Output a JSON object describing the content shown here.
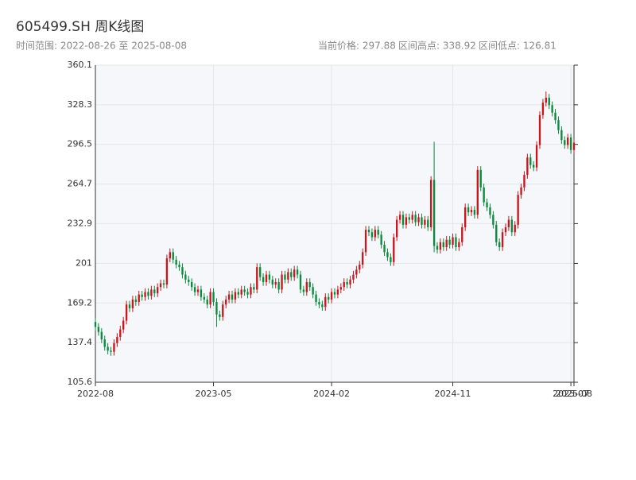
{
  "chart_data": {
    "type": "candlestick",
    "title": "605499.SH 周K线图",
    "subtitle": "时间范围: 2022-08-26 至 2025-08-08",
    "stats": [
      "当前价格: 297.88",
      "区间高点: 338.92",
      "区间低点: 126.81"
    ],
    "up_color": "#c8161d",
    "down_color": "#0a8a3c",
    "grid": true,
    "xlim": [
      0,
      154
    ],
    "xticks": [
      {
        "value": 0,
        "label": "2022-08"
      },
      {
        "value": 38,
        "label": "2023-05"
      },
      {
        "value": 76,
        "label": "2024-02"
      },
      {
        "value": 115,
        "label": "2024-11"
      },
      {
        "value": 153,
        "label": "2025-07"
      },
      {
        "value": 154,
        "label": "2025-08"
      }
    ],
    "ylim": [
      105.6,
      360.1
    ],
    "yticks": [
      105.6,
      137.4,
      169.2,
      201.0,
      232.9,
      264.7,
      296.5,
      328.3,
      360.1
    ],
    "open": [
      154,
      150,
      146,
      140,
      134,
      131,
      130,
      137,
      142,
      148,
      155,
      168,
      165,
      172,
      170,
      176,
      174,
      178,
      175,
      180,
      177,
      182,
      185,
      184,
      205,
      210,
      204,
      200,
      198,
      192,
      188,
      186,
      182,
      178,
      180,
      174,
      172,
      168,
      178,
      170,
      160,
      158,
      168,
      172,
      176,
      172,
      178,
      176,
      180,
      178,
      176,
      182,
      180,
      198,
      190,
      186,
      192,
      188,
      184,
      186,
      180,
      192,
      188,
      194,
      190,
      196,
      192,
      180,
      178,
      186,
      182,
      176,
      170,
      168,
      166,
      174,
      172,
      178,
      176,
      180,
      182,
      186,
      184,
      188,
      192,
      196,
      200,
      210,
      228,
      226,
      222,
      228,
      224,
      216,
      210,
      206,
      202,
      222,
      236,
      240,
      232,
      238,
      236,
      240,
      234,
      238,
      232,
      236,
      230,
      268,
      215,
      212,
      218,
      214,
      220,
      216,
      222,
      214,
      218,
      230,
      246,
      242,
      244,
      240,
      276,
      262,
      250,
      246,
      240,
      232,
      218,
      214,
      226,
      230,
      236,
      226,
      232,
      256,
      262,
      272,
      286,
      280,
      278,
      296,
      320,
      330,
      334,
      328,
      322,
      316,
      308,
      300,
      296,
      302,
      292
    ],
    "high": [
      157,
      153,
      149,
      143,
      137,
      134,
      140,
      145,
      151,
      158,
      171,
      171,
      175,
      175,
      179,
      179,
      181,
      181,
      183,
      183,
      185,
      188,
      188,
      208,
      213,
      213,
      207,
      203,
      201,
      195,
      191,
      189,
      185,
      183,
      183,
      177,
      175,
      181,
      181,
      173,
      163,
      171,
      175,
      179,
      179,
      181,
      181,
      183,
      183,
      181,
      185,
      185,
      201,
      201,
      193,
      195,
      195,
      191,
      189,
      189,
      195,
      195,
      197,
      197,
      199,
      199,
      195,
      183,
      189,
      189,
      185,
      179,
      173,
      171,
      177,
      177,
      181,
      181,
      183,
      185,
      189,
      189,
      191,
      195,
      199,
      203,
      213,
      231,
      231,
      229,
      231,
      231,
      227,
      219,
      213,
      209,
      225,
      239,
      243,
      243,
      241,
      241,
      243,
      243,
      241,
      241,
      239,
      239,
      271,
      298.6,
      218,
      221,
      221,
      223,
      223,
      225,
      225,
      221,
      233,
      249,
      249,
      247,
      247,
      279,
      279,
      265,
      253,
      249,
      243,
      235,
      221,
      229,
      233,
      239,
      239,
      235,
      259,
      265,
      275,
      289,
      289,
      283,
      299,
      323,
      333,
      338.92,
      337,
      331,
      325,
      319,
      311,
      303,
      305,
      305,
      301
    ],
    "low": [
      147,
      143,
      137,
      131,
      128,
      126.81,
      127,
      134,
      139,
      145,
      152,
      162,
      162,
      167,
      167,
      171,
      171,
      172,
      172,
      174,
      174,
      179,
      181,
      181,
      202,
      201,
      197,
      195,
      189,
      185,
      183,
      179,
      175,
      175,
      171,
      169,
      165,
      165,
      167,
      150,
      155,
      155,
      165,
      169,
      169,
      169,
      173,
      173,
      175,
      173,
      173,
      177,
      177,
      187,
      183,
      183,
      185,
      181,
      181,
      177,
      177,
      185,
      185,
      187,
      187,
      189,
      177,
      175,
      175,
      179,
      173,
      167,
      165,
      163,
      163,
      169,
      169,
      173,
      173,
      177,
      179,
      181,
      181,
      185,
      189,
      193,
      197,
      207,
      223,
      219,
      219,
      221,
      213,
      207,
      203,
      199,
      199,
      219,
      233,
      229,
      229,
      233,
      233,
      231,
      231,
      229,
      229,
      227,
      227,
      210,
      209,
      209,
      211,
      211,
      213,
      213,
      211,
      211,
      215,
      227,
      239,
      239,
      237,
      237,
      259,
      247,
      243,
      237,
      229,
      215,
      211,
      211,
      223,
      227,
      223,
      223,
      229,
      253,
      259,
      269,
      277,
      275,
      275,
      293,
      317,
      327,
      325,
      319,
      313,
      305,
      297,
      293,
      293,
      289,
      289
    ],
    "close": [
      150,
      146,
      140,
      134,
      131,
      130,
      137,
      142,
      148,
      155,
      168,
      165,
      172,
      170,
      176,
      174,
      178,
      175,
      180,
      177,
      182,
      185,
      184,
      205,
      210,
      204,
      200,
      198,
      192,
      188,
      186,
      182,
      178,
      180,
      174,
      172,
      168,
      178,
      170,
      160,
      158,
      168,
      172,
      176,
      172,
      178,
      176,
      180,
      178,
      176,
      182,
      180,
      198,
      190,
      186,
      192,
      188,
      184,
      186,
      180,
      192,
      188,
      194,
      190,
      196,
      192,
      180,
      178,
      186,
      182,
      176,
      170,
      168,
      166,
      174,
      172,
      178,
      176,
      180,
      182,
      186,
      184,
      188,
      192,
      196,
      200,
      210,
      228,
      226,
      222,
      228,
      224,
      216,
      210,
      206,
      202,
      222,
      236,
      240,
      232,
      238,
      236,
      240,
      234,
      238,
      232,
      236,
      230,
      268,
      215,
      212,
      218,
      214,
      220,
      216,
      222,
      214,
      218,
      230,
      246,
      242,
      244,
      240,
      276,
      262,
      250,
      246,
      240,
      232,
      218,
      214,
      226,
      230,
      236,
      226,
      232,
      256,
      262,
      272,
      286,
      280,
      278,
      296,
      320,
      330,
      334,
      328,
      322,
      316,
      308,
      300,
      296,
      302,
      292,
      297.88
    ]
  }
}
